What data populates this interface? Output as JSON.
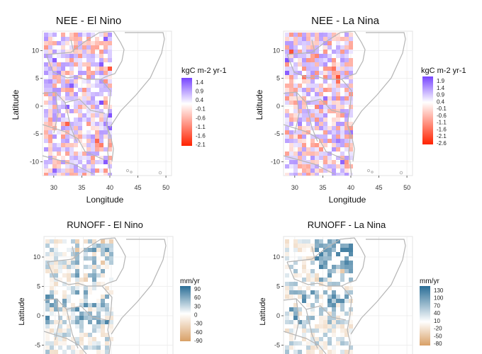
{
  "chart_data": [
    {
      "type": "heatmap",
      "title": "NEE - El Nino",
      "xlabel": "Longitude",
      "ylabel": "Latitude",
      "xlim": [
        28,
        51
      ],
      "ylim": [
        -12.5,
        13.5
      ],
      "xticks": [
        "30",
        "35",
        "40",
        "45",
        "50"
      ],
      "yticks": [
        "10",
        "5",
        "0",
        "-5",
        "-10"
      ],
      "legend_title": "kgC m-2 yr-1",
      "legend_labels": [
        "1.4",
        "0.9",
        "0.4",
        "-0.1",
        "-0.6",
        "-1.1",
        "-1.6",
        "-2.1"
      ],
      "color_high": "#7744ff",
      "color_mid": "#ffffff",
      "color_low": "#ff2200",
      "grid": true
    },
    {
      "type": "heatmap",
      "title": "NEE - La Nina",
      "xlabel": "Longitude",
      "ylabel": "Latitude",
      "xlim": [
        28,
        51
      ],
      "ylim": [
        -12.5,
        13.5
      ],
      "xticks": [
        "30",
        "35",
        "40",
        "45",
        "50"
      ],
      "yticks": [
        "10",
        "5",
        "0",
        "-5",
        "-10"
      ],
      "legend_title": "kgC m-2 yr-1",
      "legend_labels": [
        "1.9",
        "1.4",
        "0.9",
        "0.4",
        "-0.1",
        "-0.6",
        "-1.1",
        "-1.6",
        "-2.1",
        "-2.6"
      ],
      "color_high": "#7744ff",
      "color_mid": "#ffffff",
      "color_low": "#ff2200",
      "grid": true
    },
    {
      "type": "heatmap",
      "title": "RUNOFF - El Nino",
      "ylabel": "Latitude",
      "ylim": [
        -7,
        13.5
      ],
      "yticks": [
        "10",
        "5",
        "0",
        "-5"
      ],
      "legend_title": "mm/yr",
      "legend_labels": [
        "90",
        "60",
        "30",
        "0",
        "-30",
        "-60",
        "-90"
      ],
      "color_high": "#2a6e96",
      "color_mid": "#ffffff",
      "color_low": "#d9a066",
      "grid": true
    },
    {
      "type": "heatmap",
      "title": "RUNOFF - La Nina",
      "ylabel": "Latitude",
      "ylim": [
        -7,
        13.5
      ],
      "yticks": [
        "10",
        "5",
        "0",
        "-5"
      ],
      "legend_title": "mm/yr",
      "legend_labels": [
        "130",
        "100",
        "70",
        "40",
        "10",
        "-20",
        "-50",
        "-80"
      ],
      "color_high": "#2a6e96",
      "color_mid": "#ffffff",
      "color_low": "#d9a066",
      "grid": true
    }
  ]
}
